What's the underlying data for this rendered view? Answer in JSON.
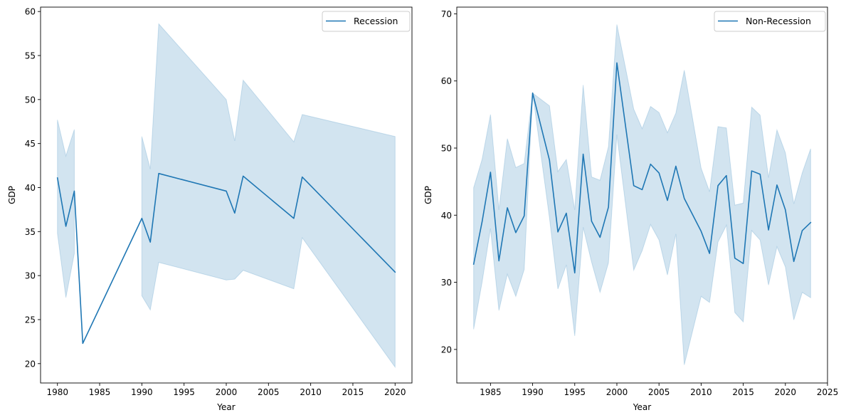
{
  "chart_data": [
    {
      "type": "line",
      "title": "",
      "xlabel": "Year",
      "ylabel": "GDP",
      "xlim": [
        1978,
        2022
      ],
      "ylim": [
        17.8,
        60.5
      ],
      "xticks": [
        1980,
        1985,
        1990,
        1995,
        2000,
        2005,
        2010,
        2015,
        2020
      ],
      "yticks": [
        20,
        25,
        30,
        35,
        40,
        45,
        50,
        55,
        60
      ],
      "legend": "upper-right",
      "line_color": "#1f77b4",
      "band_color": "#1f77b4",
      "series": [
        {
          "name": "Recession",
          "x": [
            1980,
            1981,
            1982,
            1983,
            1990,
            1991,
            1992,
            2000,
            2001,
            2002,
            2008,
            2009,
            2020
          ],
          "y": [
            41.1,
            35.6,
            39.6,
            22.3,
            36.5,
            33.8,
            41.6,
            39.6,
            37.1,
            41.3,
            36.5,
            41.2,
            30.4
          ],
          "band_low": [
            34.8,
            27.5,
            32.5,
            null,
            27.7,
            26.1,
            31.5,
            29.5,
            29.6,
            30.6,
            28.5,
            34.3,
            19.6
          ],
          "band_high": [
            47.7,
            43.6,
            46.6,
            null,
            45.8,
            42.1,
            58.6,
            50.0,
            45.3,
            52.2,
            45.2,
            48.3,
            45.8
          ]
        }
      ]
    },
    {
      "type": "line",
      "title": "",
      "xlabel": "Year",
      "ylabel": "GDP",
      "xlim": [
        1981,
        2025
      ],
      "ylim": [
        15,
        71
      ],
      "xticks": [
        1985,
        1990,
        1995,
        2000,
        2005,
        2010,
        2015,
        2020,
        2025
      ],
      "yticks": [
        20,
        30,
        40,
        50,
        60,
        70
      ],
      "legend": "upper-right",
      "line_color": "#1f77b4",
      "band_color": "#1f77b4",
      "series": [
        {
          "name": "Non-Recession",
          "x": [
            1983,
            1984,
            1985,
            1986,
            1987,
            1988,
            1989,
            1990,
            1992,
            1993,
            1994,
            1995,
            1996,
            1997,
            1998,
            1999,
            2000,
            2002,
            2003,
            2004,
            2005,
            2006,
            2007,
            2008,
            2010,
            2011,
            2012,
            2013,
            2014,
            2015,
            2016,
            2017,
            2018,
            2019,
            2020,
            2021,
            2022,
            2023
          ],
          "y": [
            32.7,
            39.0,
            46.4,
            33.2,
            41.1,
            37.4,
            39.9,
            58.2,
            48.2,
            37.5,
            40.3,
            31.4,
            49.1,
            39.1,
            36.7,
            41.2,
            62.7,
            44.4,
            43.8,
            47.6,
            46.3,
            42.2,
            47.3,
            42.5,
            37.6,
            34.3,
            44.4,
            45.9,
            33.6,
            32.8,
            46.6,
            46.1,
            37.8,
            44.5,
            40.8,
            33.1,
            37.7,
            38.9
          ],
          "band_low": [
            23.0,
            30.0,
            38.0,
            25.8,
            31.2,
            27.9,
            31.9,
            58.2,
            39.6,
            29.0,
            32.6,
            22.0,
            38.2,
            33.0,
            28.5,
            32.9,
            52.0,
            31.8,
            34.7,
            38.6,
            36.3,
            31.1,
            37.2,
            17.7,
            27.9,
            27.0,
            36.0,
            38.5,
            25.5,
            24.1,
            37.7,
            36.3,
            29.6,
            35.3,
            32.3,
            24.4,
            28.5,
            27.7
          ],
          "band_high": [
            44.1,
            48.3,
            55.0,
            40.8,
            51.4,
            47.1,
            47.7,
            58.2,
            56.3,
            46.5,
            48.3,
            40.8,
            59.4,
            45.7,
            45.2,
            50.2,
            68.4,
            55.8,
            52.9,
            56.2,
            55.3,
            52.3,
            55.2,
            61.6,
            47.0,
            43.5,
            53.2,
            53.0,
            41.5,
            41.8,
            56.1,
            54.9,
            45.6,
            52.7,
            49.3,
            41.7,
            46.3,
            49.9
          ]
        }
      ]
    }
  ]
}
